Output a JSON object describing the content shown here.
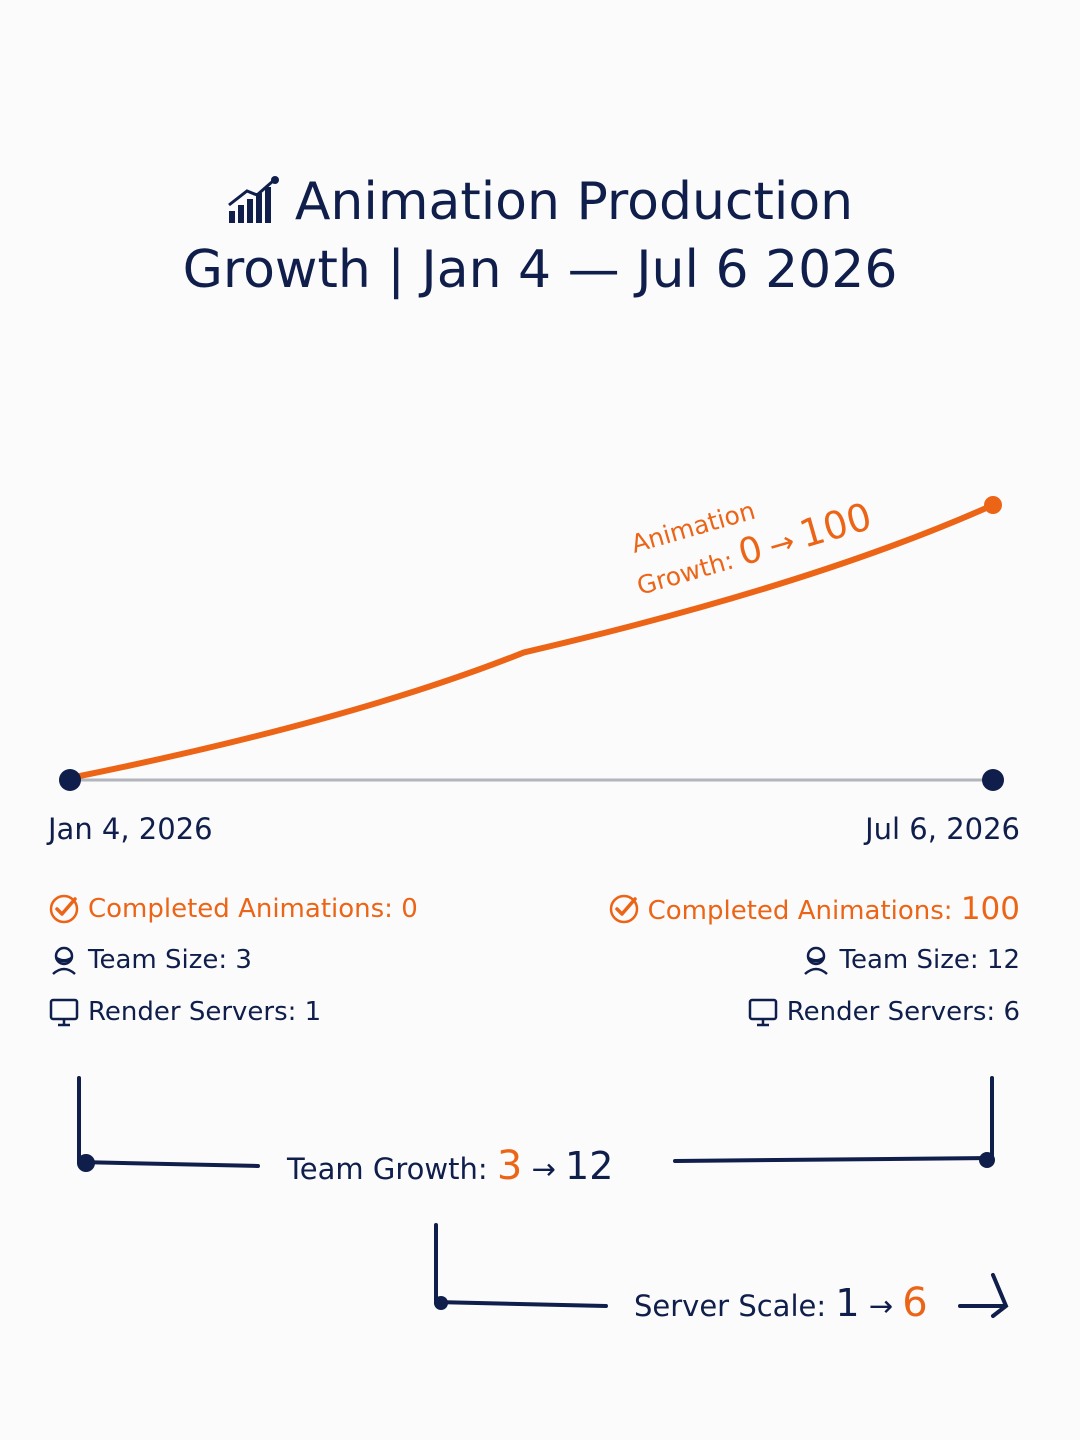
{
  "title_line1": "Animation Production",
  "title_line2": "Growth | Jan 4 — Jul 6 2026",
  "icons": {
    "title": "bar-chart-growth-icon",
    "completed": "check-circle-icon",
    "team": "person-headset-icon",
    "servers": "monitor-icon"
  },
  "colors": {
    "navy": "#0f1e4a",
    "orange": "#ec6517",
    "baseline": "#b3b5bd"
  },
  "start": {
    "date": "Jan 4, 2026",
    "completed_label": "Completed Animations: ",
    "completed_value": "0",
    "team_label": "Team Size: ",
    "team_value": "3",
    "servers_label": "Render Servers: ",
    "servers_value": "1"
  },
  "end": {
    "date": "Jul 6, 2026",
    "completed_label": "Completed Animations: ",
    "completed_value": "100",
    "team_label": "Team Size: ",
    "team_value": "12",
    "servers_label": "Render Servers: ",
    "servers_value": "6"
  },
  "team_growth": {
    "label": "Team Growth: ",
    "from": "3",
    "arrow": "→",
    "to": "12"
  },
  "server_scale": {
    "label": "Server Scale: ",
    "from": "1",
    "arrow": "→",
    "to": "6"
  },
  "chart_data": {
    "type": "line",
    "x": [
      "2026-01-04",
      "2026-07-06"
    ],
    "series": [
      {
        "label_line1": "Animation",
        "label_line2": "Growth: ",
        "label_from": "0",
        "label_arrow": "→",
        "label_to": "100",
        "x": [
          "2026-01-04",
          "2026-04-04",
          "2026-07-06"
        ],
        "values": [
          0,
          46,
          100
        ],
        "color": "#ec6517"
      }
    ],
    "ylim": [
      0,
      100
    ],
    "grid": false,
    "legend": "none"
  }
}
